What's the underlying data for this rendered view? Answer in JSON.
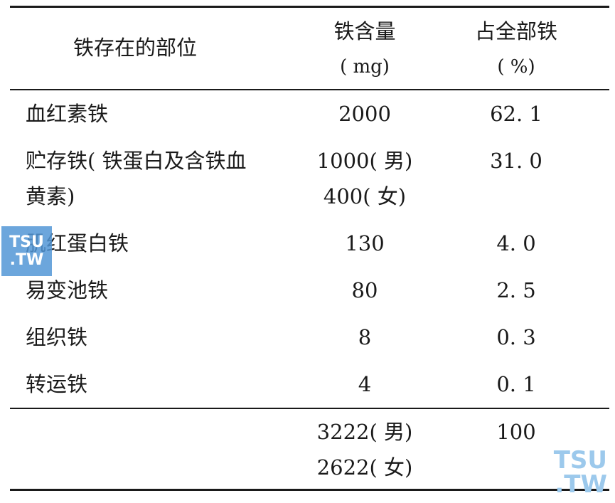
{
  "table": {
    "headers": {
      "location": "铁存在的部位",
      "content_line1": "铁含量",
      "content_line2": "( mg)",
      "percent_line1": "占全部铁",
      "percent_line2": "( %)"
    },
    "rows": [
      {
        "location": "血红素铁",
        "content": "2000",
        "percent": "62. 1"
      },
      {
        "location_line1": "贮存铁( 铁蛋白及含铁血",
        "location_line2": "黄素)",
        "content_line1": "1000( 男)",
        "content_line2": "400( 女)",
        "percent": "31. 0"
      },
      {
        "location": "肌红蛋白铁",
        "content": "130",
        "percent": "4. 0"
      },
      {
        "location": "易变池铁",
        "content": "80",
        "percent": "2. 5"
      },
      {
        "location": "组织铁",
        "content": "8",
        "percent": "0. 3"
      },
      {
        "location": "转运铁",
        "content": "4",
        "percent": "0. 1"
      }
    ],
    "total": {
      "content_line1": "3222( 男)",
      "content_line2": "2622( 女)",
      "percent": "100"
    }
  },
  "watermarks": {
    "left_line1": "TSU",
    "left_line2": ".TW",
    "right_line1": "TSU",
    "right_line2": ".TW"
  }
}
